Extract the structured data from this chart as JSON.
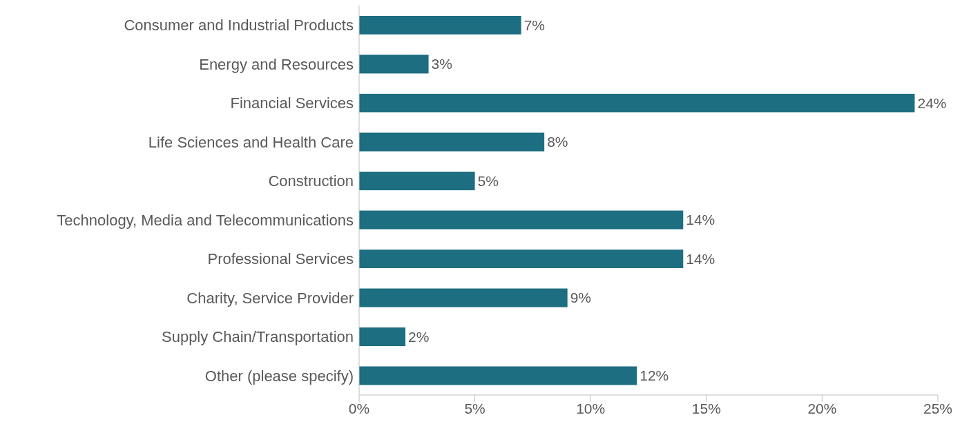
{
  "chart_data": {
    "type": "bar",
    "orientation": "horizontal",
    "categories": [
      "Consumer and Industrial Products",
      "Energy and Resources",
      "Financial Services",
      "Life Sciences and Health Care",
      "Construction",
      "Technology, Media and Telecommunications",
      "Professional Services",
      "Charity, Service Provider",
      "Supply Chain/Transportation",
      "Other (please specify)"
    ],
    "values": [
      7,
      3,
      24,
      8,
      5,
      14,
      14,
      9,
      2,
      12
    ],
    "value_labels": [
      "7%",
      "3%",
      "24%",
      "8%",
      "5%",
      "14%",
      "14%",
      "9%",
      "2%",
      "12%"
    ],
    "color": "#1d6e80",
    "xlim": [
      0,
      25
    ],
    "xticks": [
      {
        "value": 0,
        "label": "0%"
      },
      {
        "value": 5,
        "label": "5%"
      },
      {
        "value": 10,
        "label": "10%"
      },
      {
        "value": 15,
        "label": "15%"
      },
      {
        "value": 20,
        "label": "20%"
      },
      {
        "value": 25,
        "label": "25%"
      }
    ],
    "grid": false
  }
}
